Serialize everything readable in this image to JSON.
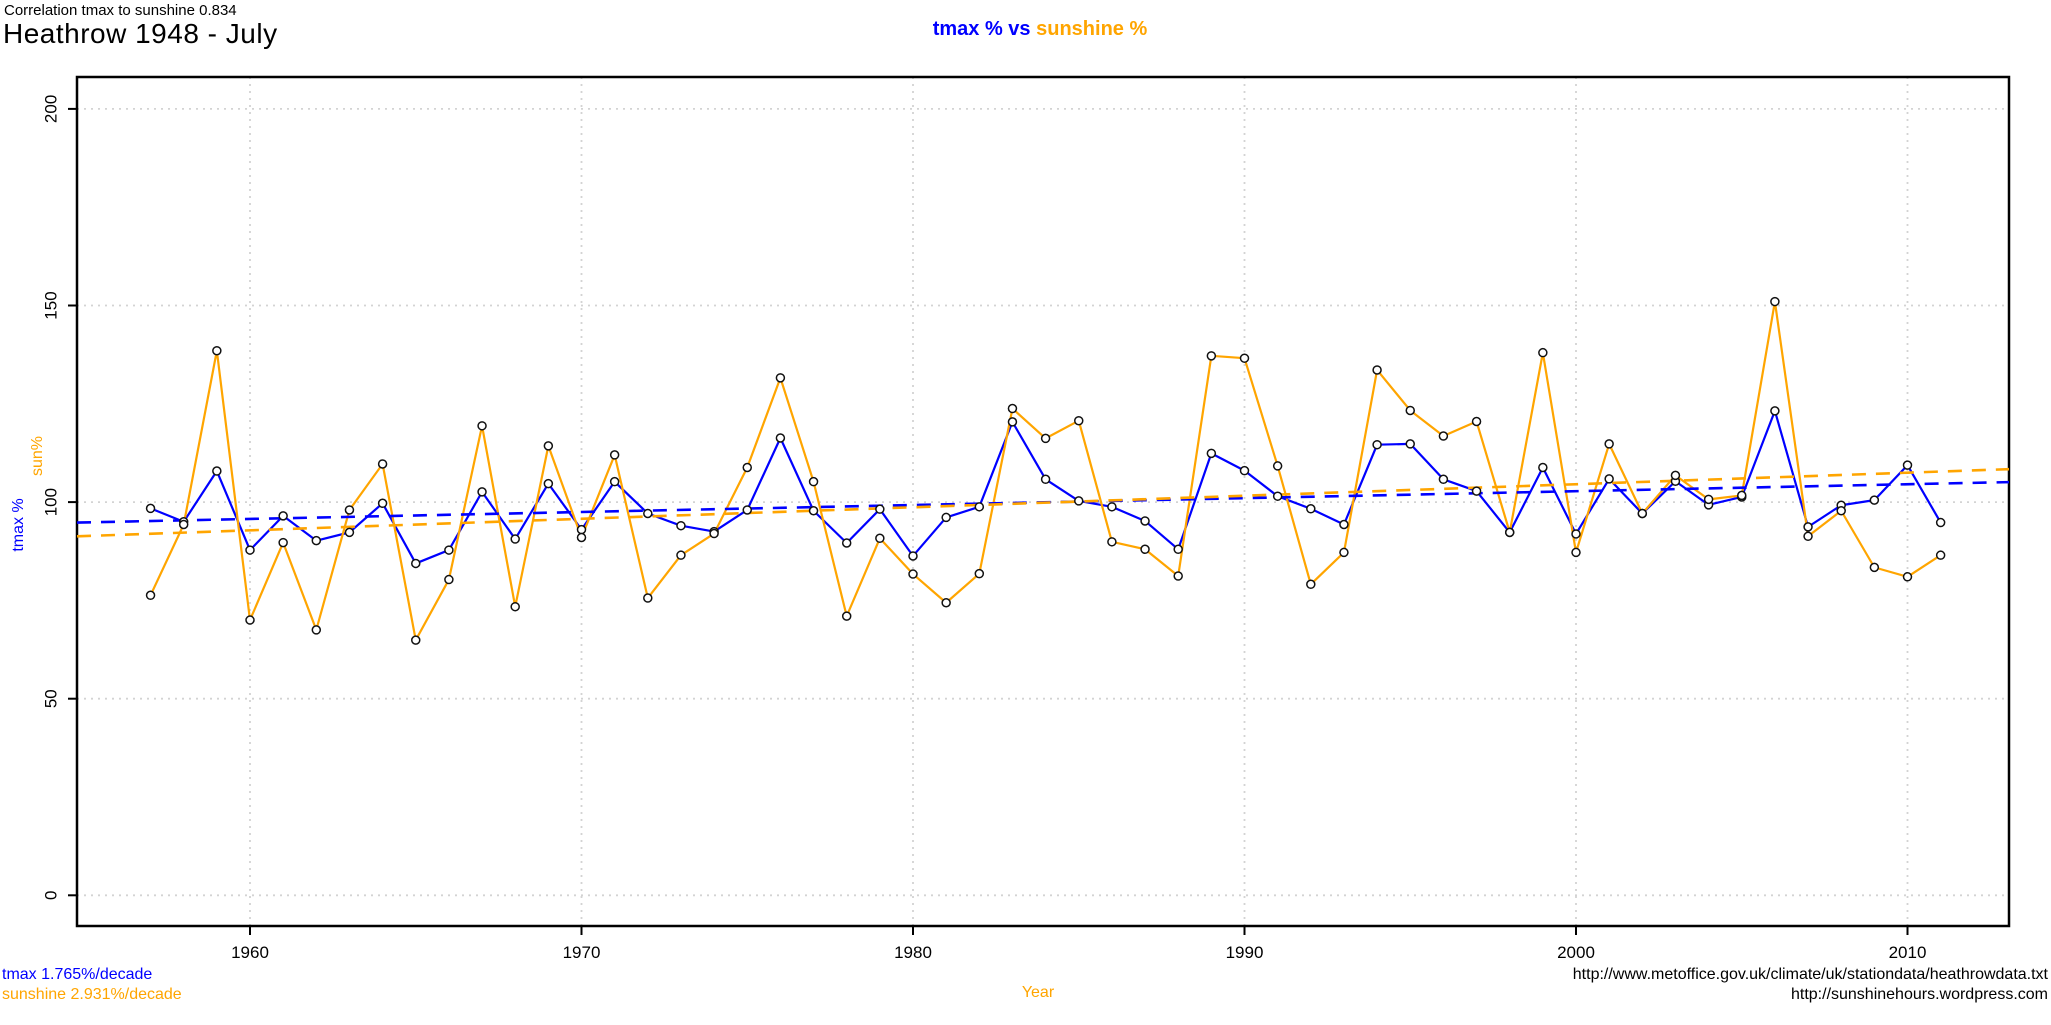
{
  "header": {
    "correlation": "Correlation tmax to sunshine 0.834",
    "title": "Heathrow 1948 - July"
  },
  "legend": {
    "tmax_part": "tmax % vs",
    "sunshine_part": "sunshine %"
  },
  "axes": {
    "x_label": "Year",
    "ylabel_tmax": "tmax %",
    "ylabel_sun": "sun%",
    "x_ticks": [
      1960,
      1970,
      1980,
      1990,
      2000,
      2010
    ],
    "y_ticks": [
      0,
      50,
      100,
      150,
      200
    ]
  },
  "footer": {
    "tmax_trend": "tmax 1.765%/decade",
    "sunshine_trend": "sunshine 2.931%/decade",
    "link1": "http://www.metoffice.gov.uk/climate/uk/stationdata/heathrowdata.txt",
    "link2": "http://sunshinehours.wordpress.com"
  },
  "colors": {
    "tmax": "#0000ff",
    "sunshine": "#ffa500",
    "grid": "#d3d3d3",
    "frame": "#000000",
    "marker_stroke": "#111111",
    "marker_fill": "#ffffff"
  },
  "chart_data": {
    "type": "line",
    "title": "Heathrow 1948 - July",
    "subtitle": "Correlation tmax to sunshine 0.834",
    "xlabel": "Year",
    "ylabel": "tmax %  /  sun%",
    "legend_position": "top-center",
    "grid": true,
    "xlim": [
      1954.8,
      2013.1
    ],
    "ylim": [
      -7.8,
      208.1
    ],
    "x": [
      1957,
      1958,
      1959,
      1960,
      1961,
      1962,
      1963,
      1964,
      1965,
      1966,
      1967,
      1968,
      1969,
      1970,
      1971,
      1972,
      1973,
      1974,
      1975,
      1976,
      1977,
      1978,
      1979,
      1980,
      1981,
      1982,
      1983,
      1984,
      1985,
      1986,
      1987,
      1988,
      1989,
      1990,
      1991,
      1992,
      1993,
      1994,
      1995,
      1996,
      1997,
      1998,
      1999,
      2000,
      2001,
      2002,
      2003,
      2004,
      2005,
      2006,
      2007,
      2008,
      2009,
      2010,
      2011
    ],
    "series": [
      {
        "name": "tmax %",
        "color_key": "tmax",
        "values": [
          98.4,
          95.0,
          107.9,
          87.8,
          96.5,
          90.2,
          92.3,
          99.7,
          84.4,
          87.8,
          102.6,
          90.6,
          104.7,
          93.0,
          105.2,
          97.1,
          94.0,
          92.5,
          98.0,
          116.3,
          97.8,
          89.6,
          98.2,
          86.3,
          96.1,
          98.8,
          120.4,
          105.8,
          100.3,
          98.8,
          95.2,
          88.0,
          112.4,
          108.0,
          101.5,
          98.3,
          94.3,
          114.6,
          114.8,
          105.8,
          102.8,
          92.3,
          108.8,
          91.9,
          105.9,
          97.1,
          105.3,
          99.3,
          101.3,
          123.2,
          93.7,
          99.2,
          100.5,
          109.4,
          94.8
        ]
      },
      {
        "name": "sunshine %",
        "color_key": "sunshine",
        "values": [
          76.3,
          94.3,
          138.5,
          70.0,
          89.7,
          67.5,
          98.0,
          109.7,
          64.9,
          80.3,
          119.4,
          73.4,
          114.3,
          91.0,
          112.0,
          75.6,
          86.5,
          92.0,
          108.8,
          131.6,
          105.2,
          71.0,
          90.8,
          81.7,
          74.4,
          81.8,
          123.8,
          116.2,
          120.7,
          89.9,
          88.0,
          81.2,
          137.2,
          136.6,
          109.2,
          79.1,
          87.2,
          133.6,
          123.3,
          116.8,
          120.5,
          92.3,
          138.0,
          87.2,
          114.8,
          97.1,
          106.8,
          100.7,
          101.7,
          151.0,
          91.3,
          97.8,
          83.4,
          81.0,
          86.5
        ]
      }
    ],
    "trend_lines": [
      {
        "name": "tmax trend",
        "color_key": "tmax",
        "rate_per_decade": 1.765,
        "value_at_1955": 94.8
      },
      {
        "name": "sunshine trend",
        "color_key": "sunshine",
        "rate_per_decade": 2.931,
        "value_at_1955": 91.3
      }
    ]
  }
}
